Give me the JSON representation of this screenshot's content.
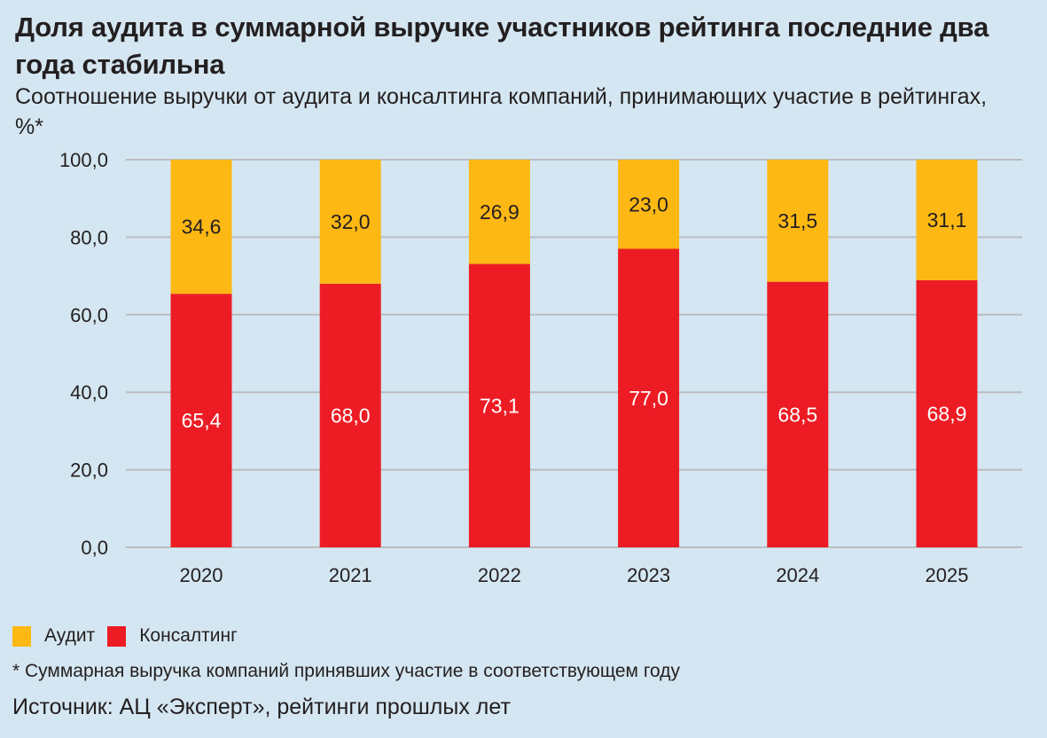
{
  "header": {
    "title": "Доля аудита в суммарной выручке участников рейтинга последние два года стабильна",
    "subtitle": "Соотношение выручки от аудита и консалтинга компаний, принимающих участие в рейтингах, %*"
  },
  "legend": [
    {
      "label": "Аудит",
      "color": "#fdb813"
    },
    {
      "label": "Консалтинг",
      "color": "#ed1c24"
    }
  ],
  "footnote": "* Суммарная выручка компаний принявших участие в соответствующем году",
  "source": "Источник: АЦ «Эксперт», рейтинги прошлых лет",
  "chart_data": {
    "type": "bar",
    "stacked": true,
    "title": "Доля аудита в суммарной выручке участников рейтинга последние два года стабильна",
    "subtitle": "Соотношение выручки от аудита и консалтинга компаний, принимающих участие в рейтингах, %*",
    "xlabel": "",
    "ylabel": "",
    "categories": [
      "2020",
      "2021",
      "2022",
      "2023",
      "2024",
      "2025"
    ],
    "series": [
      {
        "name": "Консалтинг",
        "color": "#ed1c24",
        "label_color": "#ffffff",
        "values": [
          65.4,
          68.0,
          73.1,
          77.0,
          68.5,
          68.9
        ],
        "labels": [
          "65,4",
          "68,0",
          "73,1",
          "77,0",
          "68,5",
          "68,9"
        ]
      },
      {
        "name": "Аудит",
        "color": "#fdb813",
        "label_color": "#231f20",
        "values": [
          34.6,
          32.0,
          26.9,
          23.0,
          31.5,
          31.1
        ],
        "labels": [
          "34,6",
          "32,0",
          "26,9",
          "23,0",
          "31,5",
          "31,1"
        ]
      }
    ],
    "ylim": [
      0,
      100
    ],
    "yticks": [
      0,
      20,
      40,
      60,
      80,
      100
    ],
    "ytick_labels": [
      "0,0",
      "20,0",
      "40,0",
      "60,0",
      "80,0",
      "100,0"
    ],
    "grid": true,
    "legend_position": "bottom-left"
  }
}
